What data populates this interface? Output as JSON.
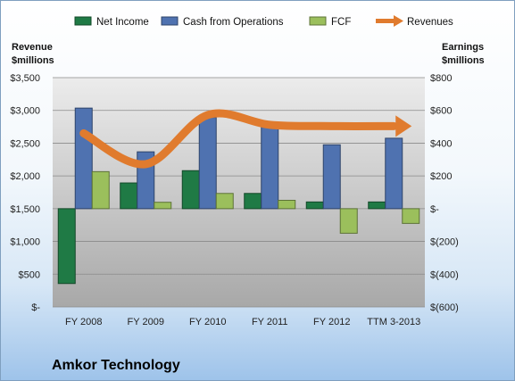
{
  "chart_data": {
    "type": "bar",
    "categories": [
      "FY 2008",
      "FY 2009",
      "FY 2010",
      "FY 2011",
      "FY 2012",
      "TTM 3-2013"
    ],
    "series": [
      {
        "name": "Net Income",
        "axis": "right",
        "type": "bar",
        "color": "#1f7a45",
        "values": [
          -457,
          157,
          232,
          93,
          41,
          41
        ]
      },
      {
        "name": "Cash from Operations",
        "axis": "right",
        "type": "bar",
        "color": "#4f72b0",
        "values": [
          614,
          347,
          557,
          515,
          390,
          430
        ]
      },
      {
        "name": "FCF",
        "axis": "right",
        "type": "bar",
        "color": "#9bbf5c",
        "values": [
          226,
          39,
          93,
          51,
          -150,
          -90
        ]
      },
      {
        "name": "Revenues",
        "axis": "left",
        "type": "line",
        "color": "#e07b2e",
        "values": [
          2650,
          2180,
          2930,
          2780,
          2760,
          2760
        ]
      }
    ],
    "left_axis": {
      "title_line1": "Revenue",
      "title_line2": "$millions",
      "ylim": [
        0,
        3500
      ],
      "ticks": [
        0,
        500,
        1000,
        1500,
        2000,
        2500,
        3000,
        3500
      ],
      "tick_labels": [
        "$-",
        "$500",
        "$1,000",
        "$1,500",
        "$2,000",
        "$2,500",
        "$3,000",
        "$3,500"
      ]
    },
    "right_axis": {
      "title_line1": "Earnings",
      "title_line2": "$millions",
      "ylim": [
        -600,
        800
      ],
      "ticks": [
        -600,
        -400,
        -200,
        0,
        200,
        400,
        600,
        800
      ],
      "tick_labels": [
        "$(600)",
        "$(400)",
        "$(200)",
        "$-",
        "$200",
        "$400",
        "$600",
        "$800"
      ]
    },
    "legend_position": "top",
    "company": "Amkor Technology"
  }
}
